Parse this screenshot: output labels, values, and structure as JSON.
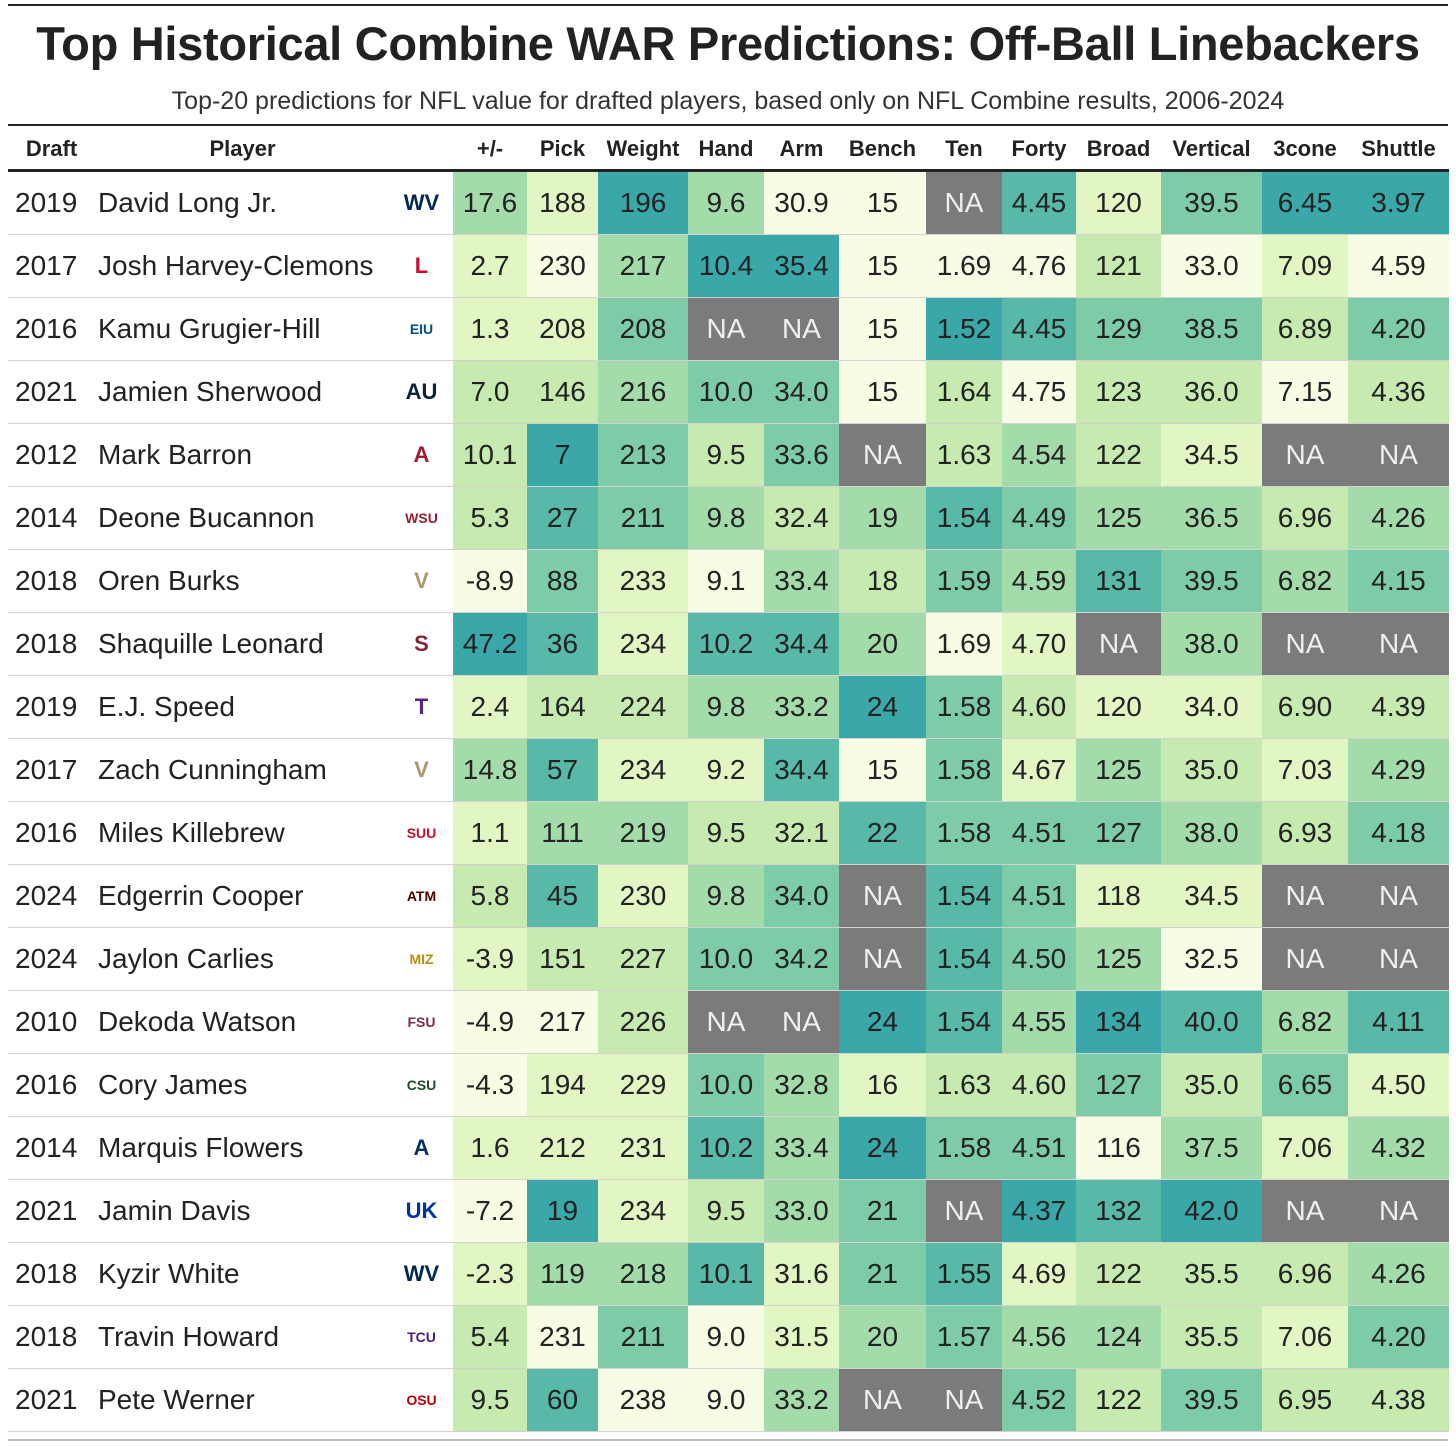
{
  "title": "Top Historical Combine WAR Predictions: Off-Ball Linebackers",
  "subtitle": "Top-20 predictions for NFL value for drafted players, based only on NFL Combine results, 2006-2024",
  "chart_data": {
    "type": "table",
    "columns": [
      "Draft",
      "Player",
      "",
      "+/-",
      "Pick",
      "Weight",
      "Hand",
      "Arm",
      "Bench",
      "Ten",
      "Forty",
      "Broad",
      "Vertical",
      "3cone",
      "Shuttle"
    ],
    "rows": [
      {
        "draft": "2019",
        "player": "David Long Jr.",
        "school": "West Virginia",
        "logo": "WV",
        "logo_color": "#002855",
        "pm": "17.6",
        "pick": "188",
        "weight": "196",
        "hand": "9.6",
        "arm": "30.9",
        "bench": "15",
        "ten": "NA",
        "forty": "4.45",
        "broad": "120",
        "vertical": "39.5",
        "cone": "6.45",
        "shuttle": "3.97"
      },
      {
        "draft": "2017",
        "player": "Josh Harvey-Clemons",
        "school": "Louisville",
        "logo": "L",
        "logo_color": "#c8102e",
        "pm": "2.7",
        "pick": "230",
        "weight": "217",
        "hand": "10.4",
        "arm": "35.4",
        "bench": "15",
        "ten": "1.69",
        "forty": "4.76",
        "broad": "121",
        "vertical": "33.0",
        "cone": "7.09",
        "shuttle": "4.59"
      },
      {
        "draft": "2016",
        "player": "Kamu Grugier-Hill",
        "school": "Eastern Illinois",
        "logo": "EIU",
        "logo_color": "#004b98",
        "pm": "1.3",
        "pick": "208",
        "weight": "208",
        "hand": "NA",
        "arm": "NA",
        "bench": "15",
        "ten": "1.52",
        "forty": "4.45",
        "broad": "129",
        "vertical": "38.5",
        "cone": "6.89",
        "shuttle": "4.20"
      },
      {
        "draft": "2021",
        "player": "Jamien Sherwood",
        "school": "Auburn",
        "logo": "AU",
        "logo_color": "#0c2340",
        "pm": "7.0",
        "pick": "146",
        "weight": "216",
        "hand": "10.0",
        "arm": "34.0",
        "bench": "15",
        "ten": "1.64",
        "forty": "4.75",
        "broad": "123",
        "vertical": "36.0",
        "cone": "7.15",
        "shuttle": "4.36"
      },
      {
        "draft": "2012",
        "player": "Mark Barron",
        "school": "Alabama",
        "logo": "A",
        "logo_color": "#9e1b32",
        "pm": "10.1",
        "pick": "7",
        "weight": "213",
        "hand": "9.5",
        "arm": "33.6",
        "bench": "NA",
        "ten": "1.63",
        "forty": "4.54",
        "broad": "122",
        "vertical": "34.5",
        "cone": "NA",
        "shuttle": "NA"
      },
      {
        "draft": "2014",
        "player": "Deone Bucannon",
        "school": "Washington State",
        "logo": "WSU",
        "logo_color": "#981e32",
        "pm": "5.3",
        "pick": "27",
        "weight": "211",
        "hand": "9.8",
        "arm": "32.4",
        "bench": "19",
        "ten": "1.54",
        "forty": "4.49",
        "broad": "125",
        "vertical": "36.5",
        "cone": "6.96",
        "shuttle": "4.26"
      },
      {
        "draft": "2018",
        "player": "Oren Burks",
        "school": "Vanderbilt",
        "logo": "V",
        "logo_color": "#a8996e",
        "pm": "-8.9",
        "pick": "88",
        "weight": "233",
        "hand": "9.1",
        "arm": "33.4",
        "bench": "18",
        "ten": "1.59",
        "forty": "4.59",
        "broad": "131",
        "vertical": "39.5",
        "cone": "6.82",
        "shuttle": "4.15"
      },
      {
        "draft": "2018",
        "player": "Shaquille Leonard",
        "school": "South Carolina State",
        "logo": "S",
        "logo_color": "#862633",
        "pm": "47.2",
        "pick": "36",
        "weight": "234",
        "hand": "10.2",
        "arm": "34.4",
        "bench": "20",
        "ten": "1.69",
        "forty": "4.70",
        "broad": "NA",
        "vertical": "38.0",
        "cone": "NA",
        "shuttle": "NA"
      },
      {
        "draft": "2019",
        "player": "E.J. Speed",
        "school": "Tarleton State",
        "logo": "T",
        "logo_color": "#4f2683",
        "pm": "2.4",
        "pick": "164",
        "weight": "224",
        "hand": "9.8",
        "arm": "33.2",
        "bench": "24",
        "ten": "1.58",
        "forty": "4.60",
        "broad": "120",
        "vertical": "34.0",
        "cone": "6.90",
        "shuttle": "4.39"
      },
      {
        "draft": "2017",
        "player": "Zach Cunningham",
        "school": "Vanderbilt",
        "logo": "V",
        "logo_color": "#a8996e",
        "pm": "14.8",
        "pick": "57",
        "weight": "234",
        "hand": "9.2",
        "arm": "34.4",
        "bench": "15",
        "ten": "1.58",
        "forty": "4.67",
        "broad": "125",
        "vertical": "35.0",
        "cone": "7.03",
        "shuttle": "4.29"
      },
      {
        "draft": "2016",
        "player": "Miles Killebrew",
        "school": "Southern Utah",
        "logo": "SUU",
        "logo_color": "#c8102e",
        "pm": "1.1",
        "pick": "111",
        "weight": "219",
        "hand": "9.5",
        "arm": "32.1",
        "bench": "22",
        "ten": "1.58",
        "forty": "4.51",
        "broad": "127",
        "vertical": "38.0",
        "cone": "6.93",
        "shuttle": "4.18"
      },
      {
        "draft": "2024",
        "player": "Edgerrin Cooper",
        "school": "Texas A&M",
        "logo": "ATM",
        "logo_color": "#500000",
        "pm": "5.8",
        "pick": "45",
        "weight": "230",
        "hand": "9.8",
        "arm": "34.0",
        "bench": "NA",
        "ten": "1.54",
        "forty": "4.51",
        "broad": "118",
        "vertical": "34.5",
        "cone": "NA",
        "shuttle": "NA"
      },
      {
        "draft": "2024",
        "player": "Jaylon Carlies",
        "school": "Missouri",
        "logo": "MIZ",
        "logo_color": "#b8900a",
        "pm": "-3.9",
        "pick": "151",
        "weight": "227",
        "hand": "10.0",
        "arm": "34.2",
        "bench": "NA",
        "ten": "1.54",
        "forty": "4.50",
        "broad": "125",
        "vertical": "32.5",
        "cone": "NA",
        "shuttle": "NA"
      },
      {
        "draft": "2010",
        "player": "Dekoda Watson",
        "school": "Florida State",
        "logo": "FSU",
        "logo_color": "#782f40",
        "pm": "-4.9",
        "pick": "217",
        "weight": "226",
        "hand": "NA",
        "arm": "NA",
        "bench": "24",
        "ten": "1.54",
        "forty": "4.55",
        "broad": "134",
        "vertical": "40.0",
        "cone": "6.82",
        "shuttle": "4.11"
      },
      {
        "draft": "2016",
        "player": "Cory James",
        "school": "Colorado State",
        "logo": "CSU",
        "logo_color": "#1e4d2b",
        "pm": "-4.3",
        "pick": "194",
        "weight": "229",
        "hand": "10.0",
        "arm": "32.8",
        "bench": "16",
        "ten": "1.63",
        "forty": "4.60",
        "broad": "127",
        "vertical": "35.0",
        "cone": "6.65",
        "shuttle": "4.50"
      },
      {
        "draft": "2014",
        "player": "Marquis Flowers",
        "school": "Arizona",
        "logo": "A",
        "logo_color": "#003366",
        "pm": "1.6",
        "pick": "212",
        "weight": "231",
        "hand": "10.2",
        "arm": "33.4",
        "bench": "24",
        "ten": "1.58",
        "forty": "4.51",
        "broad": "116",
        "vertical": "37.5",
        "cone": "7.06",
        "shuttle": "4.32"
      },
      {
        "draft": "2021",
        "player": "Jamin Davis",
        "school": "Kentucky",
        "logo": "UK",
        "logo_color": "#0033a0",
        "pm": "-7.2",
        "pick": "19",
        "weight": "234",
        "hand": "9.5",
        "arm": "33.0",
        "bench": "21",
        "ten": "NA",
        "forty": "4.37",
        "broad": "132",
        "vertical": "42.0",
        "cone": "NA",
        "shuttle": "NA"
      },
      {
        "draft": "2018",
        "player": "Kyzir White",
        "school": "West Virginia",
        "logo": "WV",
        "logo_color": "#002855",
        "pm": "-2.3",
        "pick": "119",
        "weight": "218",
        "hand": "10.1",
        "arm": "31.6",
        "bench": "21",
        "ten": "1.55",
        "forty": "4.69",
        "broad": "122",
        "vertical": "35.5",
        "cone": "6.96",
        "shuttle": "4.26"
      },
      {
        "draft": "2018",
        "player": "Travin Howard",
        "school": "TCU",
        "logo": "TCU",
        "logo_color": "#4d1979",
        "pm": "5.4",
        "pick": "231",
        "weight": "211",
        "hand": "9.0",
        "arm": "31.5",
        "bench": "20",
        "ten": "1.57",
        "forty": "4.56",
        "broad": "124",
        "vertical": "35.5",
        "cone": "7.06",
        "shuttle": "4.20"
      },
      {
        "draft": "2021",
        "player": "Pete Werner",
        "school": "Ohio State",
        "logo": "OSU",
        "logo_color": "#bb0000",
        "pm": "9.5",
        "pick": "60",
        "weight": "238",
        "hand": "9.0",
        "arm": "33.2",
        "bench": "NA",
        "ten": "NA",
        "forty": "4.52",
        "broad": "122",
        "vertical": "39.5",
        "cone": "6.95",
        "shuttle": "4.38"
      }
    ]
  },
  "colors": {
    "na": "#7b7b7b",
    "scale": [
      "#f7fde5",
      "#e2f6c4",
      "#c6eab0",
      "#a3dcaa",
      "#7ecba8",
      "#58b9a8",
      "#3aa8a9"
    ]
  }
}
